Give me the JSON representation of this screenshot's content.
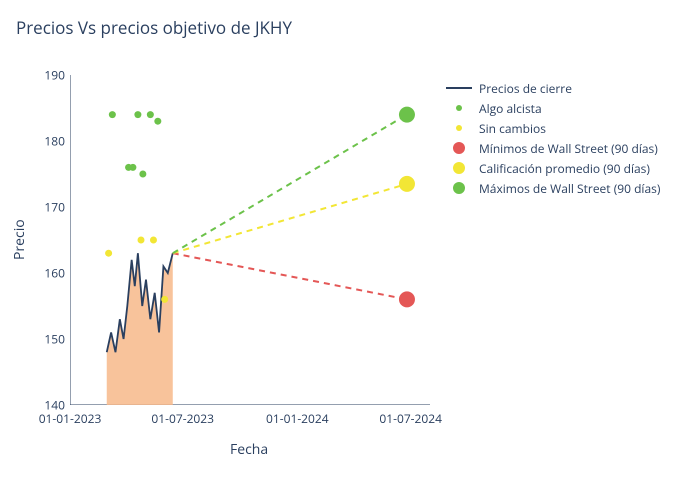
{
  "title": "Precios Vs precios objetivo de JKHY",
  "y_axis_label": "Precio",
  "x_axis_label": "Fecha",
  "chart": {
    "type": "line-scatter-combo",
    "background_color": "#ffffff",
    "text_color": "#2a3f5f",
    "title_fontsize": 17,
    "label_fontsize": 14,
    "tick_fontsize": 12,
    "legend_fontsize": 12,
    "grid_color": "#e0e0e0",
    "grid_on": false,
    "y_axis": {
      "lim": [
        140,
        190
      ],
      "ticks": [
        140,
        150,
        160,
        170,
        180,
        190
      ]
    },
    "x_axis": {
      "lim": [
        "2023-01-01",
        "2024-08-01"
      ],
      "ticks": [
        {
          "pos": "2023-01-01",
          "label": "01-01-2023"
        },
        {
          "pos": "2023-07-01",
          "label": "01-07-2023"
        },
        {
          "pos": "2024-01-01",
          "label": "01-01-2024"
        },
        {
          "pos": "2024-07-01",
          "label": "01-07-2024"
        }
      ]
    },
    "area_fill": {
      "color": "#f7b98a",
      "opacity": 0.85,
      "x_range": [
        "2023-03-01",
        "2023-06-15"
      ],
      "baseline": 140
    },
    "series": [
      {
        "name": "Precios de cierre",
        "type": "line",
        "color": "#2a3f5f",
        "line_width": 1.8,
        "legend_marker": "line",
        "data": [
          {
            "x": "2023-03-01",
            "y": 148
          },
          {
            "x": "2023-03-08",
            "y": 151
          },
          {
            "x": "2023-03-15",
            "y": 148
          },
          {
            "x": "2023-03-22",
            "y": 153
          },
          {
            "x": "2023-03-28",
            "y": 150
          },
          {
            "x": "2023-04-03",
            "y": 155
          },
          {
            "x": "2023-04-10",
            "y": 162
          },
          {
            "x": "2023-04-15",
            "y": 158
          },
          {
            "x": "2023-04-20",
            "y": 163
          },
          {
            "x": "2023-04-27",
            "y": 155
          },
          {
            "x": "2023-05-03",
            "y": 159
          },
          {
            "x": "2023-05-10",
            "y": 153
          },
          {
            "x": "2023-05-17",
            "y": 157
          },
          {
            "x": "2023-05-24",
            "y": 151
          },
          {
            "x": "2023-05-31",
            "y": 161
          },
          {
            "x": "2023-06-07",
            "y": 160
          },
          {
            "x": "2023-06-15",
            "y": 163
          }
        ]
      },
      {
        "name": "Algo alcista",
        "type": "scatter",
        "color": "#6cc24a",
        "marker": "circle",
        "marker_size": 5,
        "legend_marker": "dot-small",
        "data": [
          {
            "x": "2023-03-10",
            "y": 184
          },
          {
            "x": "2023-04-05",
            "y": 176
          },
          {
            "x": "2023-04-12",
            "y": 176
          },
          {
            "x": "2023-04-20",
            "y": 184
          },
          {
            "x": "2023-04-28",
            "y": 175
          },
          {
            "x": "2023-05-10",
            "y": 184
          },
          {
            "x": "2023-05-22",
            "y": 183
          }
        ]
      },
      {
        "name": "Sin cambios",
        "type": "scatter",
        "color": "#f2e635",
        "marker": "circle",
        "marker_size": 5,
        "legend_marker": "dot-small",
        "data": [
          {
            "x": "2023-03-04",
            "y": 163
          },
          {
            "x": "2023-04-25",
            "y": 165
          },
          {
            "x": "2023-05-15",
            "y": 165
          },
          {
            "x": "2023-06-02",
            "y": 156
          }
        ]
      },
      {
        "name": "Mínimos de Wall Street (90 días)",
        "type": "projection",
        "color": "#e45756",
        "dash": "6,5",
        "line_width": 2,
        "marker_size": 16,
        "legend_marker": "dot-large",
        "start": {
          "x": "2023-06-15",
          "y": 163
        },
        "end": {
          "x": "2024-06-25",
          "y": 156
        }
      },
      {
        "name": "Calificación promedio (90 días)",
        "type": "projection",
        "color": "#f2e635",
        "dash": "6,5",
        "line_width": 2,
        "marker_size": 16,
        "legend_marker": "dot-large",
        "start": {
          "x": "2023-06-15",
          "y": 163
        },
        "end": {
          "x": "2024-06-25",
          "y": 173.5
        }
      },
      {
        "name": "Máximos de Wall Street (90 días)",
        "type": "projection",
        "color": "#6cc24a",
        "dash": "6,5",
        "line_width": 2,
        "marker_size": 16,
        "legend_marker": "dot-large",
        "start": {
          "x": "2023-06-15",
          "y": 163
        },
        "end": {
          "x": "2024-06-25",
          "y": 184
        }
      }
    ]
  }
}
